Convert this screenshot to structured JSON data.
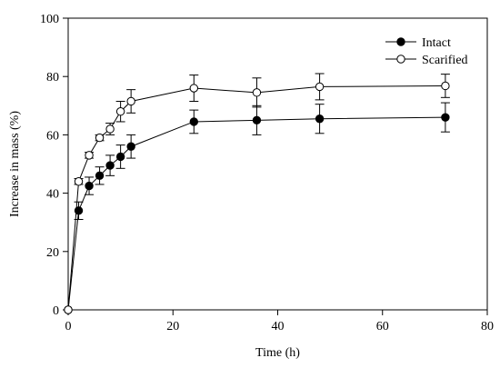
{
  "chart_data": {
    "type": "line",
    "title": "",
    "xlabel": "Time (h)",
    "ylabel": "Increase in mass (%)",
    "xlim": [
      0,
      80
    ],
    "ylim": [
      0,
      100
    ],
    "xticks": [
      0,
      20,
      40,
      60,
      80
    ],
    "yticks": [
      0,
      20,
      40,
      60,
      80,
      100
    ],
    "grid": false,
    "legend_position": "top-right",
    "series": [
      {
        "name": "Intact",
        "marker": "filled-circle",
        "color": "#000000",
        "x": [
          0,
          2,
          4,
          6,
          8,
          10,
          12,
          24,
          36,
          48,
          72
        ],
        "y": [
          0,
          34,
          42.5,
          46,
          49.5,
          52.5,
          56,
          64.5,
          65,
          65.5,
          66
        ],
        "error": [
          0,
          3,
          3,
          3,
          3.5,
          4,
          4,
          4,
          5,
          5,
          5
        ]
      },
      {
        "name": "Scarified",
        "marker": "open-circle",
        "color": "#000000",
        "x": [
          0,
          2,
          4,
          6,
          8,
          10,
          12,
          24,
          36,
          48,
          72
        ],
        "y": [
          0,
          44,
          53,
          59,
          62,
          68,
          71.5,
          76,
          74.5,
          76.5,
          76.8
        ],
        "error": [
          0,
          1,
          1,
          1,
          2,
          3.5,
          4,
          4.5,
          5,
          4.5,
          4
        ]
      }
    ]
  }
}
